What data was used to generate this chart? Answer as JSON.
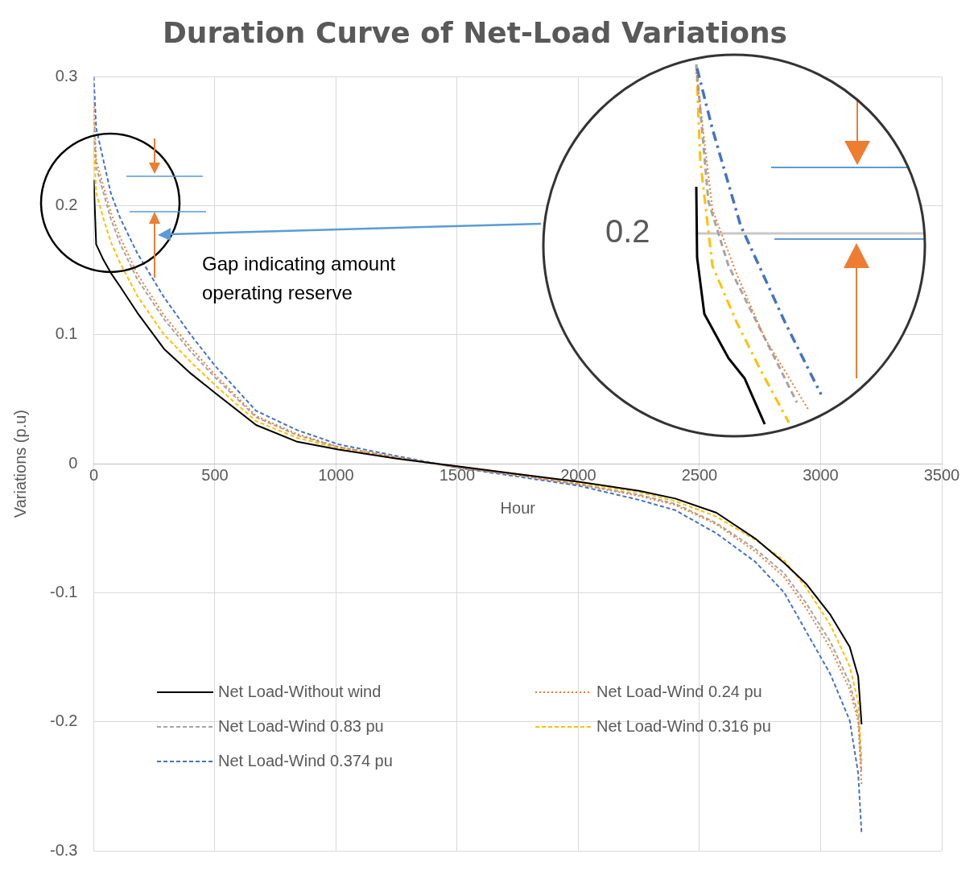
{
  "chart_data": {
    "type": "line",
    "title": "Duration Curve of Net-Load Variations",
    "xlabel": "Hour",
    "ylabel": "Variations (p.u)",
    "x": [
      0,
      10,
      40,
      70,
      110,
      180,
      290,
      400,
      500,
      670,
      840,
      1010,
      1250,
      1500,
      1750,
      2000,
      2250,
      2400,
      2570,
      2730,
      2850,
      2940,
      3040,
      3120,
      3155,
      3169
    ],
    "series": [
      {
        "name": "Net Load-Without wind",
        "color": "#000000",
        "line_style": "solid",
        "values": [
          0.22,
          0.17,
          0.158,
          0.148,
          0.137,
          0.117,
          0.089,
          0.07,
          0.055,
          0.03,
          0.017,
          0.011,
          0.004,
          -0.002,
          -0.008,
          -0.014,
          -0.021,
          -0.027,
          -0.038,
          -0.058,
          -0.077,
          -0.093,
          -0.117,
          -0.142,
          -0.165,
          -0.202
        ]
      },
      {
        "name": "Net Load-Wind 0.24 pu",
        "color": "#ed7d31",
        "line_style": "dotted",
        "values": [
          0.28,
          0.235,
          0.215,
          0.195,
          0.175,
          0.147,
          0.115,
          0.09,
          0.069,
          0.037,
          0.023,
          0.013,
          0.005,
          -0.003,
          -0.009,
          -0.016,
          -0.025,
          -0.032,
          -0.047,
          -0.068,
          -0.088,
          -0.112,
          -0.143,
          -0.175,
          -0.2,
          -0.25
        ]
      },
      {
        "name": "Net Load-Wind 0.83 pu",
        "color": "#a5a5a5",
        "line_style": "dashed",
        "values": [
          0.265,
          0.23,
          0.21,
          0.19,
          0.17,
          0.143,
          0.112,
          0.087,
          0.067,
          0.036,
          0.022,
          0.013,
          0.005,
          -0.003,
          -0.009,
          -0.016,
          -0.024,
          -0.031,
          -0.046,
          -0.066,
          -0.085,
          -0.108,
          -0.138,
          -0.17,
          -0.195,
          -0.24
        ]
      },
      {
        "name": "Net Load-Wind 0.316 pu",
        "color": "#ffc000",
        "line_style": "dashed",
        "values": [
          0.25,
          0.21,
          0.19,
          0.172,
          0.155,
          0.13,
          0.1,
          0.079,
          0.061,
          0.033,
          0.02,
          0.012,
          0.004,
          -0.002,
          -0.008,
          -0.015,
          -0.022,
          -0.029,
          -0.041,
          -0.059,
          -0.075,
          -0.096,
          -0.125,
          -0.157,
          -0.185,
          -0.23
        ]
      },
      {
        "name": "Net Load-Wind 0.374 pu",
        "color": "#4472c4",
        "line_style": "dashed",
        "values": [
          0.3,
          0.26,
          0.235,
          0.21,
          0.19,
          0.163,
          0.129,
          0.1,
          0.076,
          0.041,
          0.026,
          0.015,
          0.006,
          -0.003,
          -0.01,
          -0.017,
          -0.028,
          -0.036,
          -0.054,
          -0.076,
          -0.1,
          -0.13,
          -0.163,
          -0.199,
          -0.24,
          -0.287
        ]
      }
    ],
    "xlim": [
      0,
      3500
    ],
    "xticks": [
      0,
      500,
      1000,
      1500,
      2000,
      2500,
      3000,
      3500
    ],
    "ylim": [
      -0.3,
      0.3
    ],
    "yticks": [
      -0.3,
      -0.2,
      -0.1,
      0,
      0.1,
      0.2,
      0.3
    ],
    "grid": true,
    "legend": "bottom",
    "marker": "none",
    "annotations": [
      "Gap indicating amount operating reserve",
      "0.2"
    ]
  }
}
